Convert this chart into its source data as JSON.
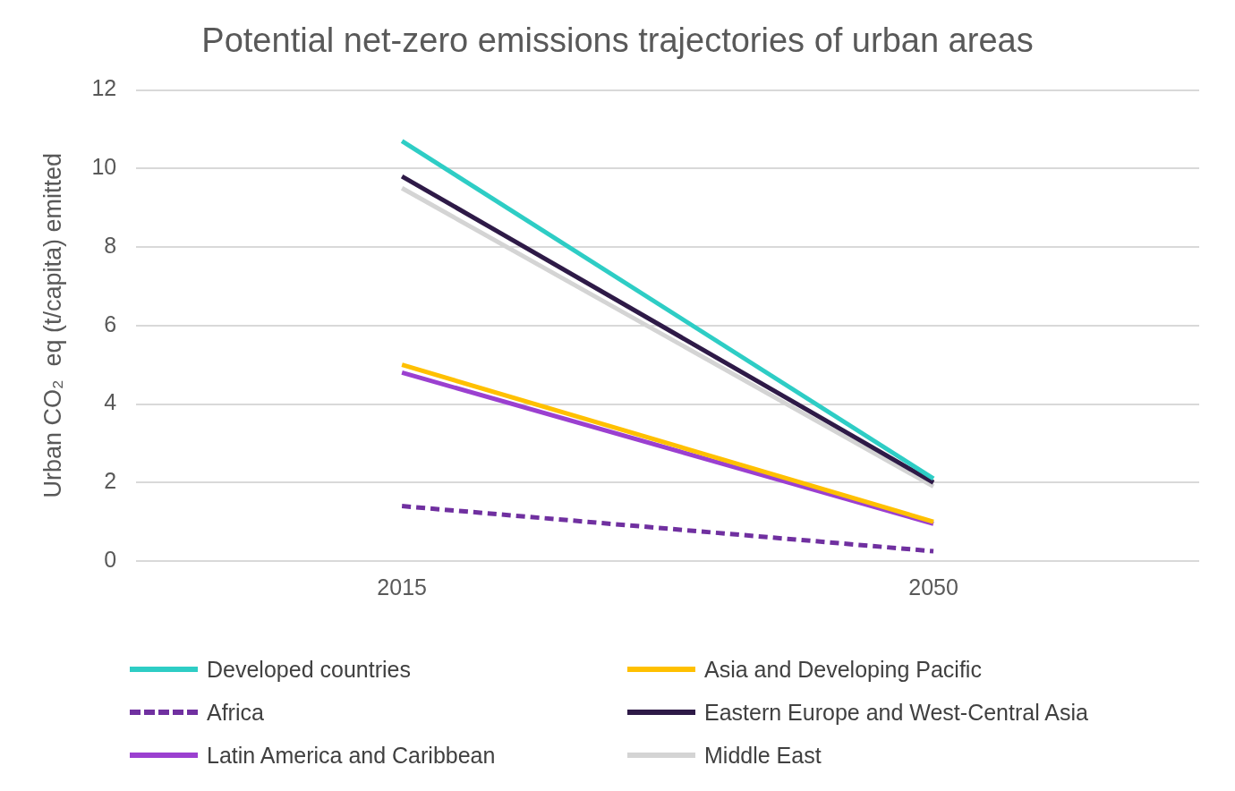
{
  "chart_data": {
    "type": "line",
    "title": "Potential net-zero emissions trajectories of urban areas",
    "ylabel": "Urban CO₂  eq (t/capita) emitted",
    "categories": [
      "2015",
      "2050"
    ],
    "series": [
      {
        "name": "Developed countries",
        "color": "#2ecdc5",
        "values": [
          10.7,
          2.1
        ]
      },
      {
        "name": "Asia and Developing Pacific",
        "color": "#ffc000",
        "values": [
          5.0,
          1.0
        ]
      },
      {
        "name": "Africa",
        "color": "#7030a0",
        "values": [
          1.4,
          0.25
        ],
        "line_style": "dashed"
      },
      {
        "name": "Eastern Europe and West-Central Asia",
        "color": "#2e1a47",
        "values": [
          9.8,
          2.0
        ]
      },
      {
        "name": "Latin America and Caribbean",
        "color": "#9b40d0",
        "values": [
          4.8,
          0.95
        ]
      },
      {
        "name": "Middle East",
        "color": "#d4d4d4",
        "values": [
          9.5,
          1.9
        ]
      }
    ],
    "ylim": [
      0,
      12
    ],
    "yticks": [
      0,
      2,
      4,
      6,
      8,
      10,
      12
    ],
    "grid": "y",
    "legend": "bottom",
    "marker": "none",
    "line_style": "solid"
  }
}
